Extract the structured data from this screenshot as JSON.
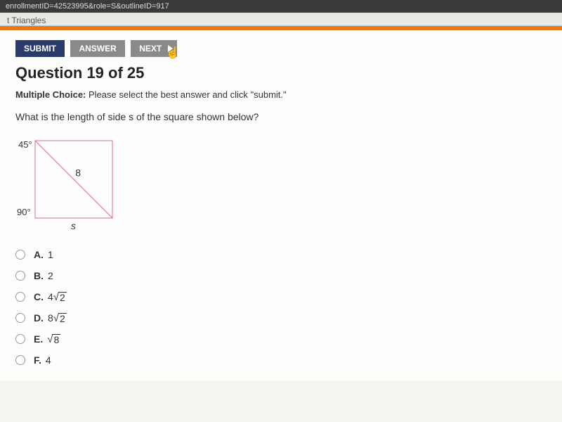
{
  "browser": {
    "url_fragment": "enrollmentID=42523995&role=S&outlineID=917",
    "tab_label": "t Triangles"
  },
  "buttons": {
    "submit": "SUBMIT",
    "answer": "ANSWER",
    "next": "NEXT"
  },
  "question": {
    "title": "Question 19 of 25",
    "instruction_bold": "Multiple Choice:",
    "instruction_rest": " Please select the best answer and click \"submit.\"",
    "prompt": "What is the length of side s of the square shown below?"
  },
  "figure": {
    "angle_top": "45°",
    "angle_bottom": "90°",
    "diagonal_label": "8",
    "side_label": "s",
    "stroke": "#d46aa0",
    "size": 110
  },
  "choices": [
    {
      "letter": "A.",
      "plain": "1"
    },
    {
      "letter": "B.",
      "plain": "2"
    },
    {
      "letter": "C.",
      "coef": "4",
      "radicand": "2"
    },
    {
      "letter": "D.",
      "coef": "8",
      "radicand": "2"
    },
    {
      "letter": "E.",
      "coef": "",
      "radicand": "8"
    },
    {
      "letter": "F.",
      "plain": "4"
    }
  ],
  "colors": {
    "accent": "#e67a1a",
    "btn_primary": "#2a3a6a",
    "btn_secondary": "#8a8a8a"
  }
}
